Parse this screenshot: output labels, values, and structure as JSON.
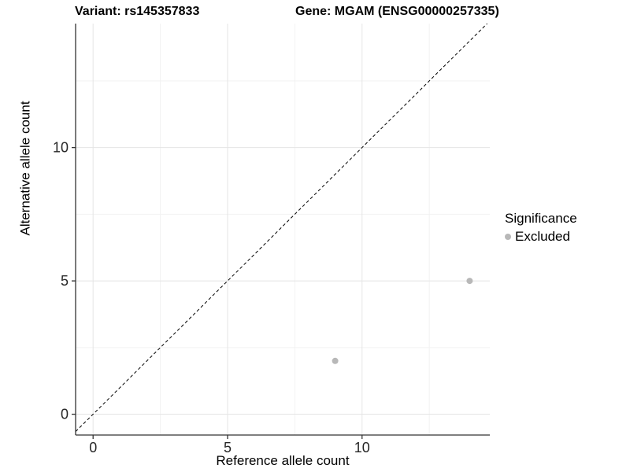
{
  "titles": {
    "variant": "Variant: rs145357833",
    "gene": "Gene: MGAM (ENSG00000257335)"
  },
  "axes": {
    "x_label": "Reference allele count",
    "y_label": "Alternative allele count"
  },
  "legend": {
    "title": "Significance",
    "items": [
      {
        "label": "Excluded",
        "color": "#b8b8b8",
        "marker": "circle-icon"
      }
    ],
    "position": "right"
  },
  "chart_data": {
    "type": "scatter",
    "title": "Variant: rs145357833 — Gene: MGAM (ENSG00000257335)",
    "xlabel": "Reference allele count",
    "ylabel": "Alternative allele count",
    "xlim": [
      -0.65,
      14.75
    ],
    "ylim": [
      -0.78,
      14.65
    ],
    "x_ticks": [
      0,
      5,
      10
    ],
    "y_ticks": [
      0,
      5,
      10
    ],
    "x_minor_ticks": [
      2.5,
      7.5,
      12.5
    ],
    "y_minor_ticks": [
      2.5,
      7.5,
      12.5
    ],
    "grid": {
      "major_color": "#e5e5e5",
      "minor_color": "#f2f2f2",
      "visible": true
    },
    "axis_color": "#333333",
    "tick_label_color": "#262626",
    "series": [
      {
        "name": "Excluded",
        "color": "#b8b8b8",
        "point_radius": 4,
        "points": [
          {
            "x": 9,
            "y": 2
          },
          {
            "x": 14,
            "y": 5
          }
        ]
      }
    ],
    "identity_line": {
      "slope": 1,
      "intercept": 0,
      "style": "dashed",
      "color": "#000000"
    },
    "legend_position": "right"
  }
}
